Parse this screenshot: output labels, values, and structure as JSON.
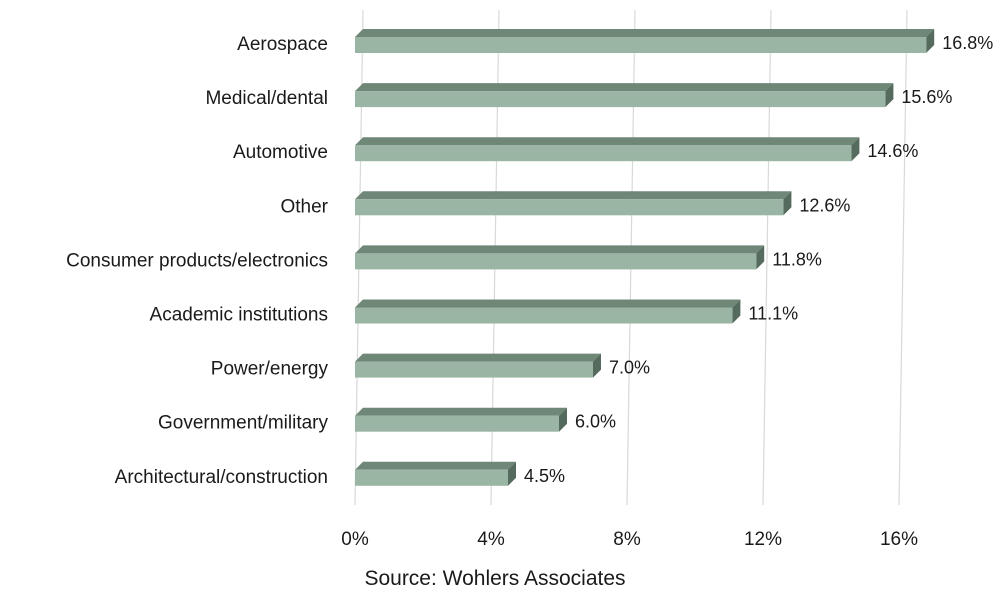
{
  "chart_data": {
    "type": "bar",
    "orientation": "horizontal",
    "categories": [
      "Aerospace",
      "Medical/dental",
      "Automotive",
      "Other",
      "Consumer products/electronics",
      "Academic institutions",
      "Power/energy",
      "Government/military",
      "Architectural/construction"
    ],
    "values": [
      16.8,
      15.6,
      14.6,
      12.6,
      11.8,
      11.1,
      7.0,
      6.0,
      4.5
    ],
    "value_labels": [
      "16.8%",
      "15.6%",
      "14.6%",
      "12.6%",
      "11.8%",
      "11.1%",
      "7.0%",
      "6.0%",
      "4.5%"
    ],
    "xlim": [
      0,
      16
    ],
    "x_ticks": [
      0,
      4,
      8,
      12,
      16
    ],
    "x_tick_labels": [
      "0%",
      "4%",
      "8%",
      "12%",
      "16%"
    ],
    "grid": "vertical",
    "bar_color": "#9bb5a5",
    "bar_top_color": "#6f8777",
    "bar_side_color": "#556b5d",
    "source": "Source: Wohlers Associates"
  }
}
